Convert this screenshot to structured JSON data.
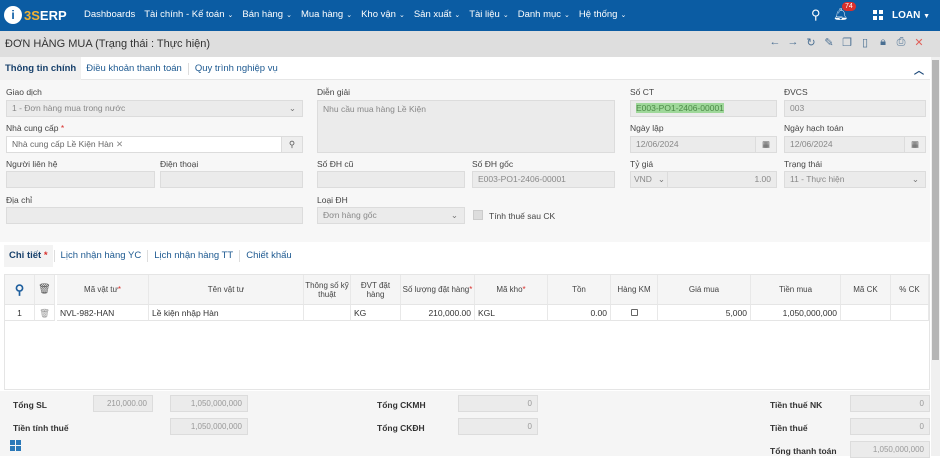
{
  "app": {
    "logo": "3SERP",
    "brand_color": "#0b5ca3"
  },
  "nav": {
    "items": [
      {
        "label": "Dashboards",
        "dropdown": false
      },
      {
        "label": "Tài chính - Kế toán",
        "dropdown": true
      },
      {
        "label": "Bán hàng",
        "dropdown": true
      },
      {
        "label": "Mua hàng",
        "dropdown": true
      },
      {
        "label": "Kho vận",
        "dropdown": true
      },
      {
        "label": "Sản xuất",
        "dropdown": true
      },
      {
        "label": "Tài liệu",
        "dropdown": true
      },
      {
        "label": "Danh mục",
        "dropdown": true
      },
      {
        "label": "Hệ thống",
        "dropdown": true
      }
    ],
    "notification_count": "74",
    "user": "LOAN"
  },
  "page": {
    "title": "ĐƠN HÀNG MUA (Trạng thái : Thực hiện)",
    "toolbar_icons": [
      "arrow-left-icon",
      "arrow-right-icon",
      "refresh-icon",
      "edit-icon",
      "copy-icon",
      "file-icon",
      "lock-icon",
      "print-icon",
      "close-icon"
    ]
  },
  "tabs": [
    "Thông tin chính",
    "Điều khoản thanh toán",
    "Quy trình nghiệp vụ"
  ],
  "form": {
    "giao_dich": {
      "label": "Giao dịch",
      "value": "1 - Đơn hàng mua trong nước"
    },
    "nha_cung_cap": {
      "label": "Nhà cung cấp",
      "value": "Nhà cung cấp Lề Kiện Hàn"
    },
    "nguoi_lien_he": {
      "label": "Người liên hệ",
      "value": ""
    },
    "dien_thoai": {
      "label": "Điện thoại",
      "value": ""
    },
    "dia_chi": {
      "label": "Địa chỉ",
      "value": ""
    },
    "dien_giai": {
      "label": "Diễn giải",
      "value": "Nhu cầu mua hàng Lề Kiện"
    },
    "so_dh_cu": {
      "label": "Số ĐH cũ",
      "value": ""
    },
    "so_dh_goc": {
      "label": "Số ĐH gốc",
      "value": "E003-PO1-2406-00001"
    },
    "loai_dh": {
      "label": "Loại ĐH",
      "value": "Đơn hàng gốc"
    },
    "tinh_thue": {
      "label": "Tính thuế sau CK",
      "checked": false
    },
    "so_ct": {
      "label": "Số CT",
      "value": "E003-PO1-2406-00001"
    },
    "dvcs": {
      "label": "ĐVCS",
      "value": "003"
    },
    "ngay_lap": {
      "label": "Ngày lập",
      "value": "12/06/2024"
    },
    "ngay_hach_toan": {
      "label": "Ngày hạch toán",
      "value": "12/06/2024"
    },
    "ty_gia": {
      "label": "Tỷ giá",
      "currency": "VND",
      "value": "1.00"
    },
    "trang_thai": {
      "label": "Trạng thái",
      "value": "11 - Thực hiện"
    }
  },
  "subtabs": [
    "Chi tiết",
    "Lịch nhận hàng YC",
    "Lịch nhận hàng TT",
    "Chiết khấu"
  ],
  "table": {
    "headers": [
      "Mã vật tư",
      "Tên vật tư",
      "Thông số kỹ thuật",
      "ĐVT đặt hàng",
      "Số lượng đặt hàng",
      "Mã kho",
      "Tồn",
      "Hàng KM",
      "Giá mua",
      "Tiền mua",
      "Mã CK",
      "% CK"
    ],
    "rows": [
      {
        "stt": "1",
        "ma_vt": "NVL-982-HAN",
        "ten_vt": "Lề kiện nhập Hàn",
        "thong_so": "",
        "dvt": "KG",
        "so_luong": "210,000.00",
        "ma_kho": "KGL",
        "ton": "0.00",
        "hang_km": false,
        "gia_mua": "5,000",
        "tien_mua": "1,050,000,000",
        "ma_ck": "",
        "pct_ck": ""
      }
    ]
  },
  "footer": {
    "tong_sl": {
      "label": "Tổng SL",
      "qty": "210,000.00",
      "amount": "1,050,000,000"
    },
    "tien_tinh_thue": {
      "label": "Tiền tính thuế",
      "value": "1,050,000,000"
    },
    "tong_ckmh": {
      "label": "Tổng CKMH",
      "value": "0"
    },
    "tong_ckdh": {
      "label": "Tổng CKĐH",
      "value": "0"
    },
    "tien_thue_nk": {
      "label": "Tiền thuế NK",
      "value": "0"
    },
    "tien_thue": {
      "label": "Tiền thuế",
      "value": "0"
    },
    "tong_thanh_toan": {
      "label": "Tổng thanh toán",
      "value": "1,050,000,000"
    }
  }
}
